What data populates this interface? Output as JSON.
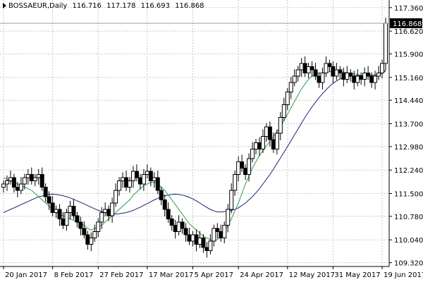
{
  "header": {
    "symbol": "BOSSAEUR,Daily",
    "open": "116.716",
    "high": "117.178",
    "low": "116.693",
    "close": "116.868"
  },
  "last_price_label": "116.868",
  "colors": {
    "bull_candle": "#ffffff",
    "bear_candle": "#000000",
    "fast_ma": "#2e9e4a",
    "slow_ma": "#1a237e",
    "grid": "#c8c8c8",
    "price_label_bg": "#000000"
  },
  "chart_data": {
    "type": "candlestick",
    "title": "BOSSAEUR,Daily",
    "grid": true,
    "y_ticks": [
      "117.360",
      "116.620",
      "115.900",
      "115.160",
      "114.440",
      "113.700",
      "112.980",
      "112.240",
      "111.500",
      "110.780",
      "110.040",
      "109.320"
    ],
    "x_ticks": [
      {
        "label": "20 Jan 2017",
        "index": 0
      },
      {
        "label": "8 Feb 2017",
        "index": 14
      },
      {
        "label": "27 Feb 2017",
        "index": 27
      },
      {
        "label": "17 Mar 2017",
        "index": 41
      },
      {
        "label": "5 Apr 2017",
        "index": 54
      },
      {
        "label": "24 Apr 2017",
        "index": 67
      },
      {
        "label": "12 May 2017",
        "index": 81
      },
      {
        "label": "31 May 2017",
        "index": 94
      },
      {
        "label": "19 Jun 2017",
        "index": 108
      }
    ],
    "ylim": [
      109.2,
      117.6
    ],
    "close": [
      111.8,
      111.9,
      112.0,
      111.7,
      111.6,
      111.8,
      112.0,
      112.1,
      111.9,
      112.0,
      112.1,
      111.7,
      111.4,
      111.2,
      110.9,
      111.0,
      110.7,
      110.5,
      110.9,
      111.1,
      110.8,
      110.6,
      110.4,
      110.2,
      109.9,
      110.1,
      110.3,
      110.6,
      110.9,
      111.0,
      110.8,
      111.2,
      111.6,
      111.9,
      112.0,
      111.7,
      111.9,
      112.2,
      112.0,
      111.8,
      112.1,
      112.2,
      111.9,
      112.0,
      111.6,
      111.3,
      111.0,
      110.7,
      110.5,
      110.3,
      110.6,
      110.4,
      110.2,
      110.0,
      110.2,
      109.9,
      110.1,
      109.8,
      109.7,
      110.0,
      110.4,
      110.3,
      110.1,
      110.5,
      111.0,
      111.6,
      112.1,
      112.5,
      112.3,
      112.1,
      112.6,
      112.9,
      113.1,
      112.9,
      113.3,
      113.6,
      113.2,
      112.9,
      113.4,
      113.9,
      114.3,
      114.7,
      115.0,
      115.2,
      115.4,
      115.6,
      115.3,
      115.5,
      115.4,
      115.2,
      115.0,
      115.3,
      115.6,
      115.5,
      115.2,
      115.4,
      115.3,
      115.1,
      115.3,
      115.2,
      115.0,
      115.2,
      115.1,
      115.3,
      115.2,
      115.0,
      115.2,
      115.3,
      115.6,
      116.87
    ],
    "ma_fast": [
      112.0,
      111.95,
      111.9,
      111.85,
      111.8,
      111.75,
      111.7,
      111.65,
      111.6,
      111.5,
      111.4,
      111.3,
      111.2,
      111.1,
      111.0,
      110.9,
      110.85,
      110.8,
      110.75,
      110.7,
      110.65,
      110.6,
      110.55,
      110.5,
      110.4,
      110.35,
      110.4,
      110.45,
      110.5,
      110.6,
      110.7,
      110.8,
      110.9,
      111.0,
      111.1,
      111.2,
      111.3,
      111.45,
      111.55,
      111.65,
      111.75,
      111.8,
      111.85,
      111.85,
      111.8,
      111.7,
      111.6,
      111.45,
      111.3,
      111.15,
      111.0,
      110.85,
      110.7,
      110.55,
      110.45,
      110.35,
      110.25,
      110.15,
      110.1,
      110.05,
      110.0,
      110.05,
      110.15,
      110.3,
      110.5,
      110.7,
      110.95,
      111.2,
      111.5,
      111.8,
      112.05,
      112.3,
      112.5,
      112.7,
      112.85,
      113.0,
      113.15,
      113.3,
      113.45,
      113.6,
      113.8,
      114.0,
      114.2,
      114.4,
      114.6,
      114.8,
      114.95,
      115.1,
      115.2,
      115.25,
      115.3,
      115.3,
      115.32,
      115.34,
      115.35,
      115.35,
      115.35,
      115.33,
      115.31,
      115.29,
      115.27,
      115.25,
      115.23,
      115.22,
      115.21,
      115.2,
      115.2,
      115.22,
      115.3,
      115.4
    ],
    "ma_slow": [
      110.9,
      110.95,
      111.0,
      111.05,
      111.1,
      111.15,
      111.2,
      111.25,
      111.3,
      111.35,
      111.4,
      111.42,
      111.45,
      111.47,
      111.48,
      111.47,
      111.45,
      111.43,
      111.4,
      111.36,
      111.32,
      111.27,
      111.22,
      111.17,
      111.12,
      111.07,
      111.02,
      110.97,
      110.93,
      110.9,
      110.87,
      110.85,
      110.85,
      110.86,
      110.88,
      110.9,
      110.93,
      110.97,
      111.02,
      111.07,
      111.13,
      111.18,
      111.24,
      111.3,
      111.35,
      111.4,
      111.43,
      111.45,
      111.47,
      111.48,
      111.47,
      111.45,
      111.42,
      111.38,
      111.33,
      111.27,
      111.2,
      111.13,
      111.06,
      111.0,
      110.95,
      110.92,
      110.92,
      110.93,
      110.95,
      110.97,
      111.0,
      111.05,
      111.12,
      111.2,
      111.3,
      111.4,
      111.52,
      111.65,
      111.8,
      111.95,
      112.1,
      112.27,
      112.45,
      112.62,
      112.8,
      112.98,
      113.16,
      113.35,
      113.53,
      113.72,
      113.9,
      114.07,
      114.23,
      114.38,
      114.52,
      114.65,
      114.77,
      114.88,
      114.97,
      115.05,
      115.11,
      115.15,
      115.18,
      115.2,
      115.21,
      115.22,
      115.22,
      115.22,
      115.23,
      115.23,
      115.24,
      115.26,
      115.3,
      115.36
    ]
  }
}
